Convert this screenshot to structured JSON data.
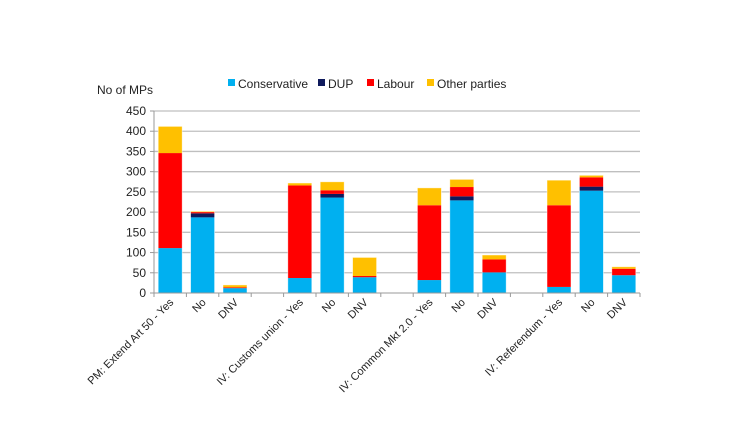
{
  "chart_data": {
    "type": "bar",
    "stacked": true,
    "title": "",
    "ylabel": "No of MPs",
    "xlabel": "",
    "ylim": [
      0,
      450
    ],
    "yticks": [
      0,
      50,
      100,
      150,
      200,
      250,
      300,
      350,
      400,
      450
    ],
    "grid": true,
    "legend_position": "top",
    "categories": [
      "PM: Extend Art 50 - Yes",
      "No",
      "DNV",
      "",
      "IV: Customs union - Yes",
      "No",
      "DNV",
      "",
      "IV: Common Mkt 2.0 - Yes",
      "No",
      "DNV",
      "",
      "IV: Referendum - Yes",
      "No",
      "DNV"
    ],
    "series": [
      {
        "name": "Conservative",
        "color": "#00b0f0",
        "values": [
          111,
          187,
          12,
          null,
          37,
          236,
          39,
          null,
          32,
          229,
          51,
          null,
          15,
          253,
          44
        ]
      },
      {
        "name": "DUP",
        "color": "#0f1a5c",
        "values": [
          0,
          10,
          0,
          null,
          0,
          9,
          0,
          null,
          0,
          10,
          0,
          null,
          0,
          10,
          0
        ]
      },
      {
        "name": "Labour",
        "color": "#ff0000",
        "values": [
          235,
          3,
          2,
          null,
          229,
          9,
          3,
          null,
          185,
          23,
          32,
          null,
          202,
          23,
          16
        ]
      },
      {
        "name": "Other parties",
        "color": "#ffc000",
        "values": [
          66,
          2,
          6,
          null,
          6,
          21,
          46,
          null,
          43,
          19,
          11,
          null,
          62,
          5,
          5
        ]
      }
    ]
  }
}
